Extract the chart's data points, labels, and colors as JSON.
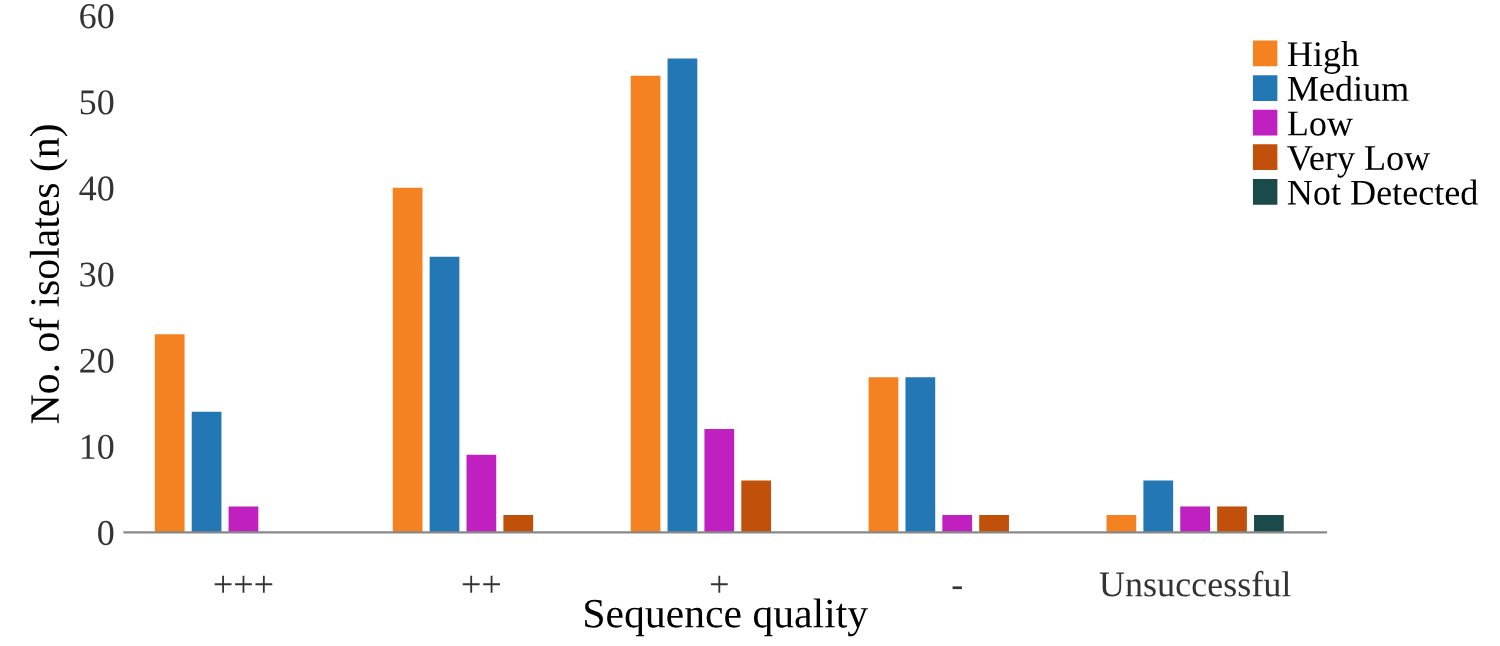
{
  "chart_data": {
    "type": "bar",
    "xlabel": "Sequence quality",
    "ylabel": "No. of isolates (n)",
    "categories": [
      "+++",
      "++",
      "+",
      "-",
      "Unsuccessful"
    ],
    "series": [
      {
        "name": "High",
        "color": "#f58220",
        "values": [
          23,
          40,
          53,
          18,
          2
        ]
      },
      {
        "name": "Medium",
        "color": "#2477b5",
        "values": [
          14,
          32,
          55,
          18,
          6
        ]
      },
      {
        "name": "Low",
        "color": "#c020c0",
        "values": [
          3,
          9,
          12,
          2,
          3
        ]
      },
      {
        "name": "Very Low",
        "color": "#c0500a",
        "values": [
          0,
          2,
          6,
          2,
          3
        ]
      },
      {
        "name": "Not Detected",
        "color": "#1a4a4a",
        "values": [
          0,
          0,
          0,
          0,
          2
        ]
      }
    ],
    "ylim": [
      0,
      60
    ],
    "yticks": [
      0,
      10,
      20,
      30,
      40,
      50,
      60
    ],
    "grid": false,
    "legend": "top right"
  }
}
